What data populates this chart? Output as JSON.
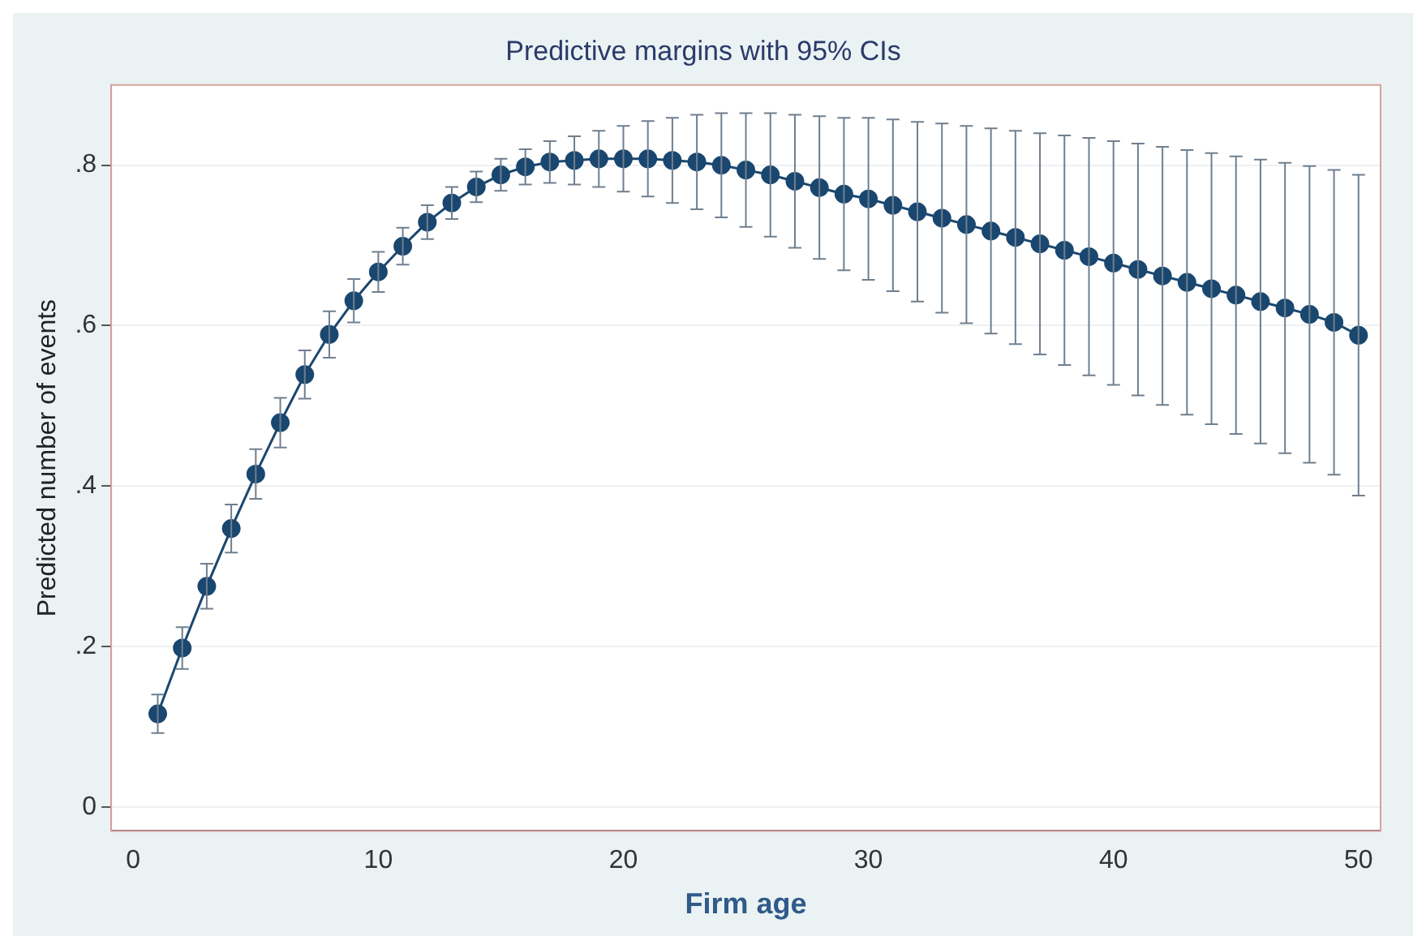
{
  "chart_data": {
    "type": "line",
    "title": "Predictive margins with 95% CIs",
    "xlabel": "Firm age",
    "ylabel": "Predicted number of events",
    "x": [
      1,
      2,
      3,
      4,
      5,
      6,
      7,
      8,
      9,
      10,
      11,
      12,
      13,
      14,
      15,
      16,
      17,
      18,
      19,
      20,
      21,
      22,
      23,
      24,
      25,
      26,
      27,
      28,
      29,
      30,
      31,
      32,
      33,
      34,
      35,
      36,
      37,
      38,
      39,
      40,
      41,
      42,
      43,
      44,
      45,
      46,
      47,
      48,
      49,
      50
    ],
    "series": [
      {
        "color": "#1a476f",
        "values": [
          0.116,
          0.198,
          0.275,
          0.347,
          0.415,
          0.479,
          0.539,
          0.589,
          0.631,
          0.667,
          0.699,
          0.729,
          0.753,
          0.773,
          0.788,
          0.798,
          0.804,
          0.806,
          0.808,
          0.808,
          0.808,
          0.806,
          0.804,
          0.8,
          0.794,
          0.788,
          0.78,
          0.772,
          0.764,
          0.758,
          0.75,
          0.742,
          0.734,
          0.726,
          0.718,
          0.71,
          0.702,
          0.694,
          0.686,
          0.678,
          0.67,
          0.662,
          0.654,
          0.646,
          0.638,
          0.63,
          0.622,
          0.614,
          0.604,
          0.588
        ],
        "errors": [
          0.024,
          0.026,
          0.028,
          0.03,
          0.031,
          0.031,
          0.03,
          0.029,
          0.027,
          0.025,
          0.023,
          0.021,
          0.02,
          0.019,
          0.02,
          0.022,
          0.026,
          0.03,
          0.035,
          0.041,
          0.047,
          0.053,
          0.059,
          0.065,
          0.071,
          0.077,
          0.083,
          0.089,
          0.095,
          0.101,
          0.107,
          0.112,
          0.118,
          0.123,
          0.128,
          0.133,
          0.138,
          0.143,
          0.148,
          0.152,
          0.157,
          0.161,
          0.165,
          0.169,
          0.173,
          0.177,
          0.181,
          0.185,
          0.19,
          0.2
        ]
      }
    ],
    "xlim": [
      -0.9,
      50.9
    ],
    "xticks": [
      0,
      10,
      20,
      30,
      40,
      50
    ],
    "ylim": [
      -0.03,
      0.9
    ],
    "yticks": [
      0,
      {
        "value": 0.2,
        "label": ".2"
      },
      {
        "value": 0.4,
        "label": ".4"
      },
      {
        "value": 0.6,
        "label": ".6"
      },
      {
        "value": 0.8,
        "label": ".8"
      }
    ],
    "grid": "y",
    "marker": "circle",
    "line_style": "solid",
    "legend": false
  }
}
